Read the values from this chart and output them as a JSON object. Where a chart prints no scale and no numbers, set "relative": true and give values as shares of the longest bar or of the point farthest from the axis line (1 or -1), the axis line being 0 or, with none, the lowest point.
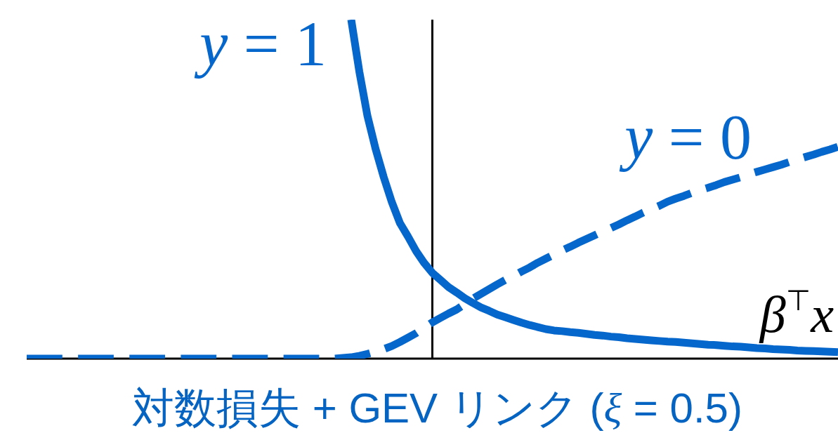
{
  "chart_data": {
    "type": "line",
    "relative": true,
    "title": "対数損失 + GEV リンク (ξ = 0.5)",
    "xlabel": "β$^{⊤}$x",
    "categories": [
      null,
      null,
      null,
      null,
      null,
      null,
      null,
      null,
      null,
      null,
      null,
      null,
      null,
      null,
      null,
      null,
      null,
      null,
      null,
      null,
      null,
      null,
      null,
      null,
      null,
      null,
      null,
      null,
      null,
      null,
      null,
      null,
      null,
      null,
      null,
      null,
      null,
      null,
      null,
      null,
      null,
      null,
      null,
      null,
      null,
      null,
      null,
      null,
      null,
      null,
      null,
      null,
      null,
      null,
      null,
      null,
      null,
      null,
      null,
      null,
      null,
      null,
      null,
      null,
      null,
      null,
      null,
      null,
      null,
      null,
      null,
      null,
      null,
      null,
      null,
      null,
      null,
      null,
      null,
      null,
      null,
      null,
      null,
      null,
      null,
      null,
      null,
      null,
      null,
      null,
      null,
      null,
      null,
      null,
      null,
      null,
      null,
      null,
      null,
      null,
      null
    ],
    "series": [
      {
        "name": "y = 1",
        "color": "#0566cc",
        "line_style": "solid",
        "values": [
          null,
          null,
          null,
          null,
          null,
          null,
          null,
          null,
          null,
          null,
          null,
          null,
          null,
          null,
          null,
          null,
          null,
          null,
          null,
          null,
          null,
          null,
          null,
          null,
          null,
          null,
          null,
          null,
          null,
          null,
          null,
          null,
          null,
          null,
          null,
          null,
          null,
          null,
          null,
          null,
          1.0,
          0.847,
          0.716,
          0.619,
          0.536,
          0.462,
          0.4,
          0.36,
          0.317,
          0.282,
          0.253,
          0.232,
          0.211,
          0.195,
          0.178,
          0.164,
          0.151,
          0.141,
          0.13,
          0.122,
          0.114,
          0.106,
          0.099,
          0.093,
          0.087,
          0.083,
          0.081,
          0.078,
          0.076,
          0.073,
          0.07,
          0.068,
          0.065,
          0.063,
          0.06,
          0.058,
          0.056,
          0.054,
          0.052,
          0.05,
          0.049,
          0.047,
          0.045,
          0.043,
          0.041,
          0.04,
          0.038,
          0.036,
          0.035,
          0.033,
          0.031,
          0.03,
          0.028,
          0.027,
          0.026,
          0.024,
          0.023,
          0.022,
          0.021,
          0.02,
          0.019
        ]
      },
      {
        "name": "y = 0",
        "color": "#0566cc",
        "line_style": "dashed",
        "values": [
          0,
          0,
          0,
          0,
          0,
          0,
          0,
          0,
          0,
          0,
          0,
          0,
          0,
          0,
          0,
          0,
          0,
          0,
          0,
          0,
          0,
          0,
          0,
          0,
          0,
          0,
          0,
          0,
          0,
          0,
          0,
          0,
          0,
          0,
          0,
          0,
          0,
          0,
          0,
          0.002,
          0.004,
          0.008,
          0.014,
          0.021,
          0.028,
          0.037,
          0.049,
          0.062,
          0.075,
          0.091,
          0.107,
          0.12,
          0.133,
          0.145,
          0.161,
          0.177,
          0.191,
          0.205,
          0.219,
          0.232,
          0.244,
          0.257,
          0.269,
          0.283,
          0.295,
          0.307,
          0.319,
          0.33,
          0.342,
          0.353,
          0.364,
          0.375,
          0.385,
          0.396,
          0.408,
          0.419,
          0.431,
          0.441,
          0.451,
          0.463,
          0.472,
          0.48,
          0.489,
          0.497,
          0.504,
          0.512,
          0.521,
          0.528,
          0.535,
          0.544,
          0.551,
          0.558,
          0.565,
          0.572,
          0.58,
          0.588,
          0.595,
          0.602,
          0.61,
          0.617,
          0.625
        ]
      }
    ]
  }
}
